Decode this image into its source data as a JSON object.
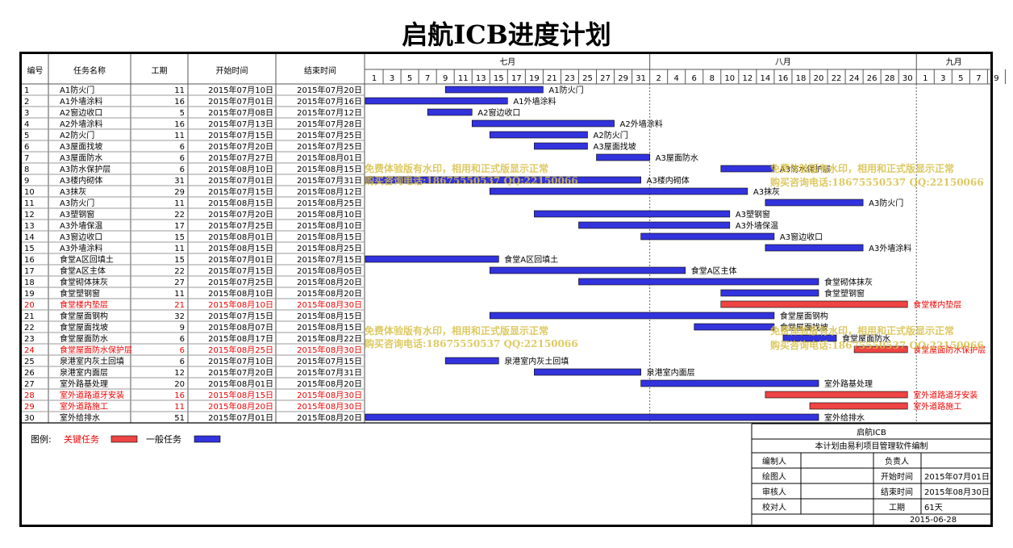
{
  "title": "启航ICB进度计划",
  "columns": {
    "id": "编号",
    "name": "任务名称",
    "duration": "工期",
    "start": "开始时间",
    "end": "结束时间"
  },
  "months": [
    {
      "label": "七月",
      "days": [
        "1",
        "3",
        "5",
        "7",
        "9",
        "11",
        "13",
        "15",
        "17",
        "19",
        "21",
        "23",
        "25",
        "27",
        "29",
        "31"
      ]
    },
    {
      "label": "八月",
      "days": [
        "2",
        "4",
        "6",
        "8",
        "10",
        "12",
        "14",
        "16",
        "18",
        "20",
        "22",
        "24",
        "26",
        "28",
        "30"
      ]
    },
    {
      "label": "九月",
      "days": [
        "1",
        "3",
        "5",
        "7",
        "9"
      ]
    }
  ],
  "chart_data": {
    "type": "gantt",
    "title": "启航ICB进度计划",
    "x_axis": {
      "start": "2015-07-01",
      "end": "2015-09-10",
      "unit": "2 days"
    },
    "colors": {
      "critical": "#ee4444",
      "normal": "#3333dd"
    },
    "tasks": [
      {
        "id": "1",
        "name": "A1防火门",
        "duration": "11",
        "start": "2015年07月10日",
        "end": "2015年07月20日",
        "critical": false,
        "label": "A1防火门",
        "s": 9,
        "e": 20
      },
      {
        "id": "2",
        "name": "A1外墙涂料",
        "duration": "16",
        "start": "2015年07月01日",
        "end": "2015年07月16日",
        "critical": false,
        "label": "A1外墙涂料",
        "s": 0,
        "e": 16
      },
      {
        "id": "3",
        "name": "A2窗边收口",
        "duration": "5",
        "start": "2015年07月08日",
        "end": "2015年07月12日",
        "critical": false,
        "label": "A2窗边收口",
        "s": 7,
        "e": 12
      },
      {
        "id": "4",
        "name": "A2外墙涂料",
        "duration": "16",
        "start": "2015年07月13日",
        "end": "2015年07月28日",
        "critical": false,
        "label": "A2外墙涂料",
        "s": 12,
        "e": 28
      },
      {
        "id": "5",
        "name": "A2防火门",
        "duration": "11",
        "start": "2015年07月15日",
        "end": "2015年07月25日",
        "critical": false,
        "label": "A2防火门",
        "s": 14,
        "e": 25
      },
      {
        "id": "6",
        "name": "A3屋面找坡",
        "duration": "6",
        "start": "2015年07月20日",
        "end": "2015年07月25日",
        "critical": false,
        "label": "A3屋面找坡",
        "s": 19,
        "e": 25
      },
      {
        "id": "7",
        "name": "A3屋面防水",
        "duration": "6",
        "start": "2015年07月27日",
        "end": "2015年08月01日",
        "critical": false,
        "label": "A3屋面防水",
        "s": 26,
        "e": 32
      },
      {
        "id": "8",
        "name": "A3防水保护层",
        "duration": "6",
        "start": "2015年08月10日",
        "end": "2015年08月15日",
        "critical": false,
        "label": "A3防水保护层",
        "s": 40,
        "e": 46
      },
      {
        "id": "9",
        "name": "A3楼内砌体",
        "duration": "31",
        "start": "2015年07月01日",
        "end": "2015年07月31日",
        "critical": false,
        "label": "A3楼内砌体",
        "s": 0,
        "e": 31
      },
      {
        "id": "10",
        "name": "A3抹灰",
        "duration": "29",
        "start": "2015年07月15日",
        "end": "2015年08月12日",
        "critical": false,
        "label": "A3抹灰",
        "s": 14,
        "e": 43
      },
      {
        "id": "11",
        "name": "A3防火门",
        "duration": "11",
        "start": "2015年08月15日",
        "end": "2015年08月25日",
        "critical": false,
        "label": "A3防火门",
        "s": 45,
        "e": 56
      },
      {
        "id": "12",
        "name": "A3塑钢窗",
        "duration": "22",
        "start": "2015年07月20日",
        "end": "2015年08月10日",
        "critical": false,
        "label": "A3塑钢窗",
        "s": 19,
        "e": 41
      },
      {
        "id": "13",
        "name": "A3外墙保温",
        "duration": "17",
        "start": "2015年07月25日",
        "end": "2015年08月10日",
        "critical": false,
        "label": "A3外墙保温",
        "s": 24,
        "e": 41
      },
      {
        "id": "14",
        "name": "A3窗边收口",
        "duration": "15",
        "start": "2015年08月01日",
        "end": "2015年08月15日",
        "critical": false,
        "label": "A3窗边收口",
        "s": 31,
        "e": 46
      },
      {
        "id": "15",
        "name": "A3外墙涂料",
        "duration": "11",
        "start": "2015年08月15日",
        "end": "2015年08月25日",
        "critical": false,
        "label": "A3外墙涂料",
        "s": 45,
        "e": 56
      },
      {
        "id": "16",
        "name": "食堂A区回填土",
        "duration": "15",
        "start": "2015年07月01日",
        "end": "2015年07月15日",
        "critical": false,
        "label": "食堂A区回填土",
        "s": 0,
        "e": 15
      },
      {
        "id": "17",
        "name": "食堂A区主体",
        "duration": "22",
        "start": "2015年07月15日",
        "end": "2015年08月05日",
        "critical": false,
        "label": "食堂A区主体",
        "s": 14,
        "e": 36
      },
      {
        "id": "18",
        "name": "食堂砌体抹灰",
        "duration": "27",
        "start": "2015年07月25日",
        "end": "2015年08月20日",
        "critical": false,
        "label": "食堂砌体抹灰",
        "s": 24,
        "e": 51
      },
      {
        "id": "19",
        "name": "食堂塑钢窗",
        "duration": "11",
        "start": "2015年08月10日",
        "end": "2015年08月20日",
        "critical": false,
        "label": "食堂塑钢窗",
        "s": 40,
        "e": 51
      },
      {
        "id": "20",
        "name": "食堂楼内垫层",
        "duration": "21",
        "start": "2015年08月10日",
        "end": "2015年08月30日",
        "critical": true,
        "label": "食堂楼内垫层",
        "s": 40,
        "e": 61
      },
      {
        "id": "21",
        "name": "食堂屋面钢构",
        "duration": "32",
        "start": "2015年07月15日",
        "end": "2015年08月15日",
        "critical": false,
        "label": "食堂屋面钢构",
        "s": 14,
        "e": 46
      },
      {
        "id": "22",
        "name": "食堂屋面找坡",
        "duration": "9",
        "start": "2015年08月07日",
        "end": "2015年08月15日",
        "critical": false,
        "label": "食堂屋面找坡",
        "s": 37,
        "e": 46
      },
      {
        "id": "23",
        "name": "食堂屋面防水",
        "duration": "6",
        "start": "2015年08月17日",
        "end": "2015年08月22日",
        "critical": false,
        "label": "食堂屋面防水",
        "s": 47,
        "e": 53
      },
      {
        "id": "24",
        "name": "食堂屋面防水保护层",
        "duration": "6",
        "start": "2015年08月25日",
        "end": "2015年08月30日",
        "critical": true,
        "label": "食堂屋面防水保护层",
        "s": 55,
        "e": 61
      },
      {
        "id": "25",
        "name": "泉港室内灰土回填",
        "duration": "6",
        "start": "2015年07月10日",
        "end": "2015年07月15日",
        "critical": false,
        "label": "泉港室内灰土回填",
        "s": 9,
        "e": 15
      },
      {
        "id": "26",
        "name": "泉港室内面层",
        "duration": "12",
        "start": "2015年07月20日",
        "end": "2015年07月31日",
        "critical": false,
        "label": "泉港室内面层",
        "s": 19,
        "e": 31
      },
      {
        "id": "27",
        "name": "室外路基处理",
        "duration": "20",
        "start": "2015年08月01日",
        "end": "2015年08月20日",
        "critical": false,
        "label": "室外路基处理",
        "s": 31,
        "e": 51
      },
      {
        "id": "28",
        "name": "室外道路道牙安装",
        "duration": "16",
        "start": "2015年08月15日",
        "end": "2015年08月30日",
        "critical": true,
        "label": "室外道路道牙安装",
        "s": 45,
        "e": 61
      },
      {
        "id": "29",
        "name": "室外道路施工",
        "duration": "11",
        "start": "2015年08月20日",
        "end": "2015年08月30日",
        "critical": true,
        "label": "室外道路施工",
        "s": 50,
        "e": 61
      },
      {
        "id": "30",
        "name": "室外给排水",
        "duration": "51",
        "start": "2015年07月01日",
        "end": "2015年08月20日",
        "critical": false,
        "label": "室外给排水",
        "s": 0,
        "e": 51
      }
    ]
  },
  "legend": {
    "title": "图例:",
    "critical": "关键任务",
    "normal": "一般任务"
  },
  "info": {
    "project": "启航ICB",
    "note": "本计划由易利项目管理软件编制",
    "rows": [
      {
        "l1": "编制人",
        "v1": "",
        "l2": "负责人",
        "v2": ""
      },
      {
        "l1": "绘图人",
        "v1": "",
        "l2": "开始时间",
        "v2": "2015年07月01日"
      },
      {
        "l1": "审核人",
        "v1": "",
        "l2": "结束时间",
        "v2": "2015年08月30日"
      },
      {
        "l1": "校对人",
        "v1": "",
        "l2": "工期",
        "v2": "61天"
      }
    ],
    "date": "2015-06-28"
  },
  "watermarks": {
    "line1": "免费体验版有水印，相用和正式版显示正常",
    "line2": "购买咨询电话:18675550537 QQ:22150066"
  }
}
